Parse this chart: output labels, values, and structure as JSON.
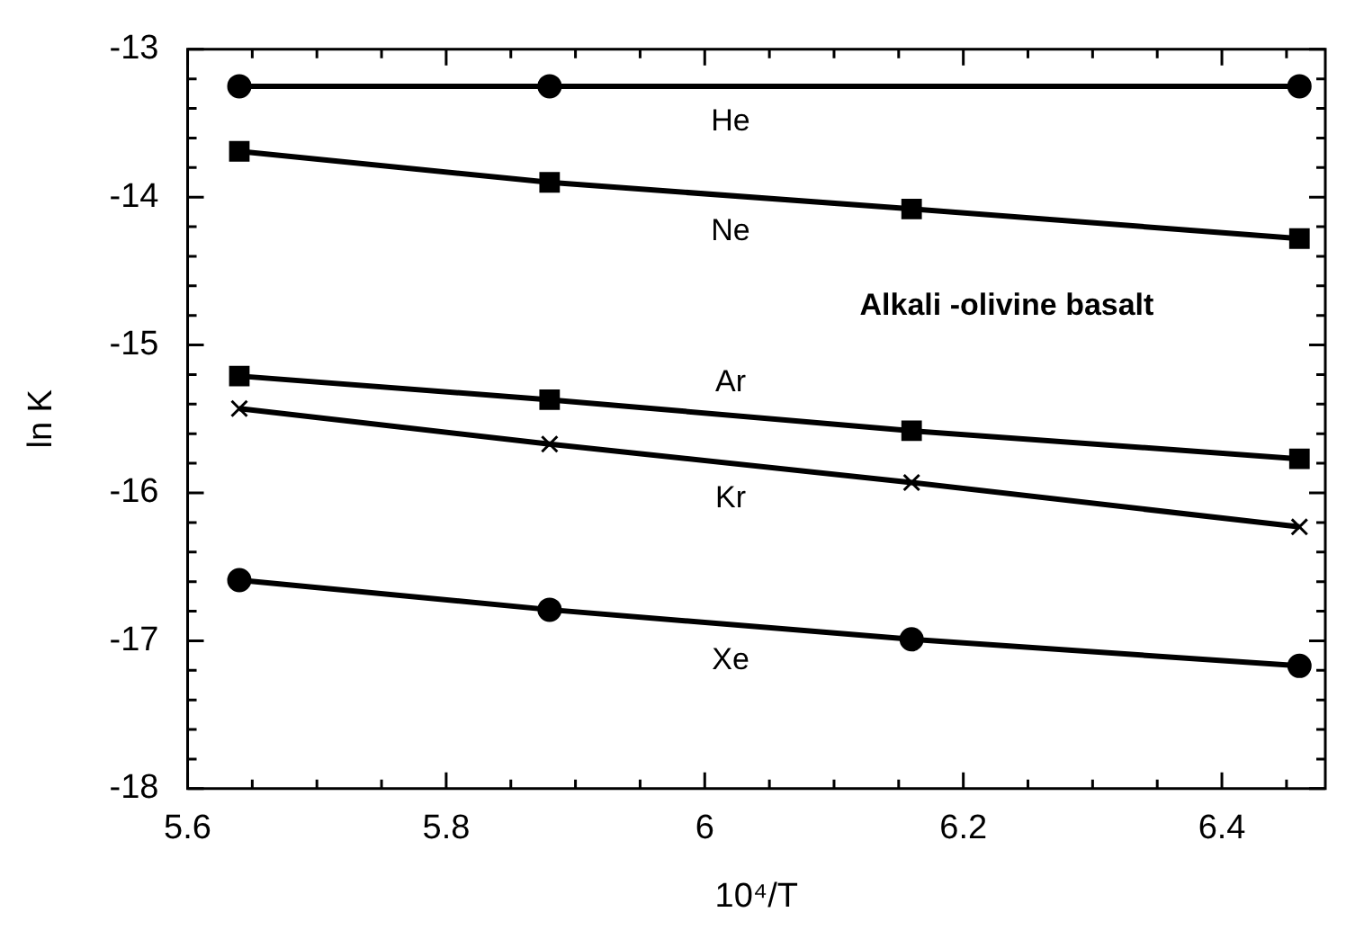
{
  "chart_data": {
    "type": "line",
    "xlabel": "10⁴/T",
    "ylabel": "ln K",
    "annotations": [
      "Alkali -olivine basalt"
    ],
    "x": [
      5.64,
      5.88,
      6.16,
      6.46
    ],
    "series": [
      {
        "name": "He",
        "color": "#000000",
        "marker": "circle",
        "values": [
          -13.25,
          -13.25,
          null,
          -13.25
        ]
      },
      {
        "name": "Ne",
        "color": "#000000",
        "marker": "square",
        "values": [
          -13.69,
          -13.9,
          -14.08,
          -14.28
        ]
      },
      {
        "name": "Ar",
        "color": "#000000",
        "marker": "square",
        "values": [
          -15.21,
          -15.37,
          -15.58,
          -15.77
        ]
      },
      {
        "name": "Kr",
        "color": "#000000",
        "marker": "cross",
        "values": [
          -15.43,
          -15.67,
          -15.93,
          -16.23
        ]
      },
      {
        "name": "Xe",
        "color": "#000000",
        "marker": "circle",
        "values": [
          -16.59,
          -16.79,
          -16.99,
          -17.17
        ]
      }
    ],
    "xlim": [
      5.6,
      6.48
    ],
    "ylim": [
      -18,
      -13
    ],
    "xticks": [
      5.6,
      {
        "value": 5.65,
        "label": null
      },
      {
        "value": 5.7,
        "label": null
      },
      {
        "value": 5.75,
        "label": null
      },
      5.8,
      {
        "value": 5.85,
        "label": null
      },
      {
        "value": 5.9,
        "label": null
      },
      {
        "value": 5.95,
        "label": null
      },
      6,
      {
        "value": 6.05,
        "label": null
      },
      {
        "value": 6.1,
        "label": null
      },
      {
        "value": 6.15,
        "label": null
      },
      6.2,
      {
        "value": 6.25,
        "label": null
      },
      {
        "value": 6.3,
        "label": null
      },
      {
        "value": 6.35,
        "label": null
      },
      6.4,
      {
        "value": 6.45,
        "label": null
      }
    ],
    "yticks": [
      -18,
      {
        "value": -17.8,
        "label": null
      },
      {
        "value": -17.6,
        "label": null
      },
      {
        "value": -17.4,
        "label": null
      },
      {
        "value": -17.2,
        "label": null
      },
      -17,
      {
        "value": -16.8,
        "label": null
      },
      {
        "value": -16.6,
        "label": null
      },
      {
        "value": -16.4,
        "label": null
      },
      {
        "value": -16.2,
        "label": null
      },
      -16,
      {
        "value": -15.8,
        "label": null
      },
      {
        "value": -15.6,
        "label": null
      },
      {
        "value": -15.4,
        "label": null
      },
      {
        "value": -15.2,
        "label": null
      },
      -15,
      {
        "value": -14.8,
        "label": null
      },
      {
        "value": -14.6,
        "label": null
      },
      {
        "value": -14.4,
        "label": null
      },
      {
        "value": -14.2,
        "label": null
      },
      -14,
      {
        "value": -13.8,
        "label": null
      },
      {
        "value": -13.6,
        "label": null
      },
      {
        "value": -13.4,
        "label": null
      },
      {
        "value": -13.2,
        "label": null
      },
      -13
    ],
    "grid": false,
    "legend": false,
    "line_style": "solid"
  }
}
